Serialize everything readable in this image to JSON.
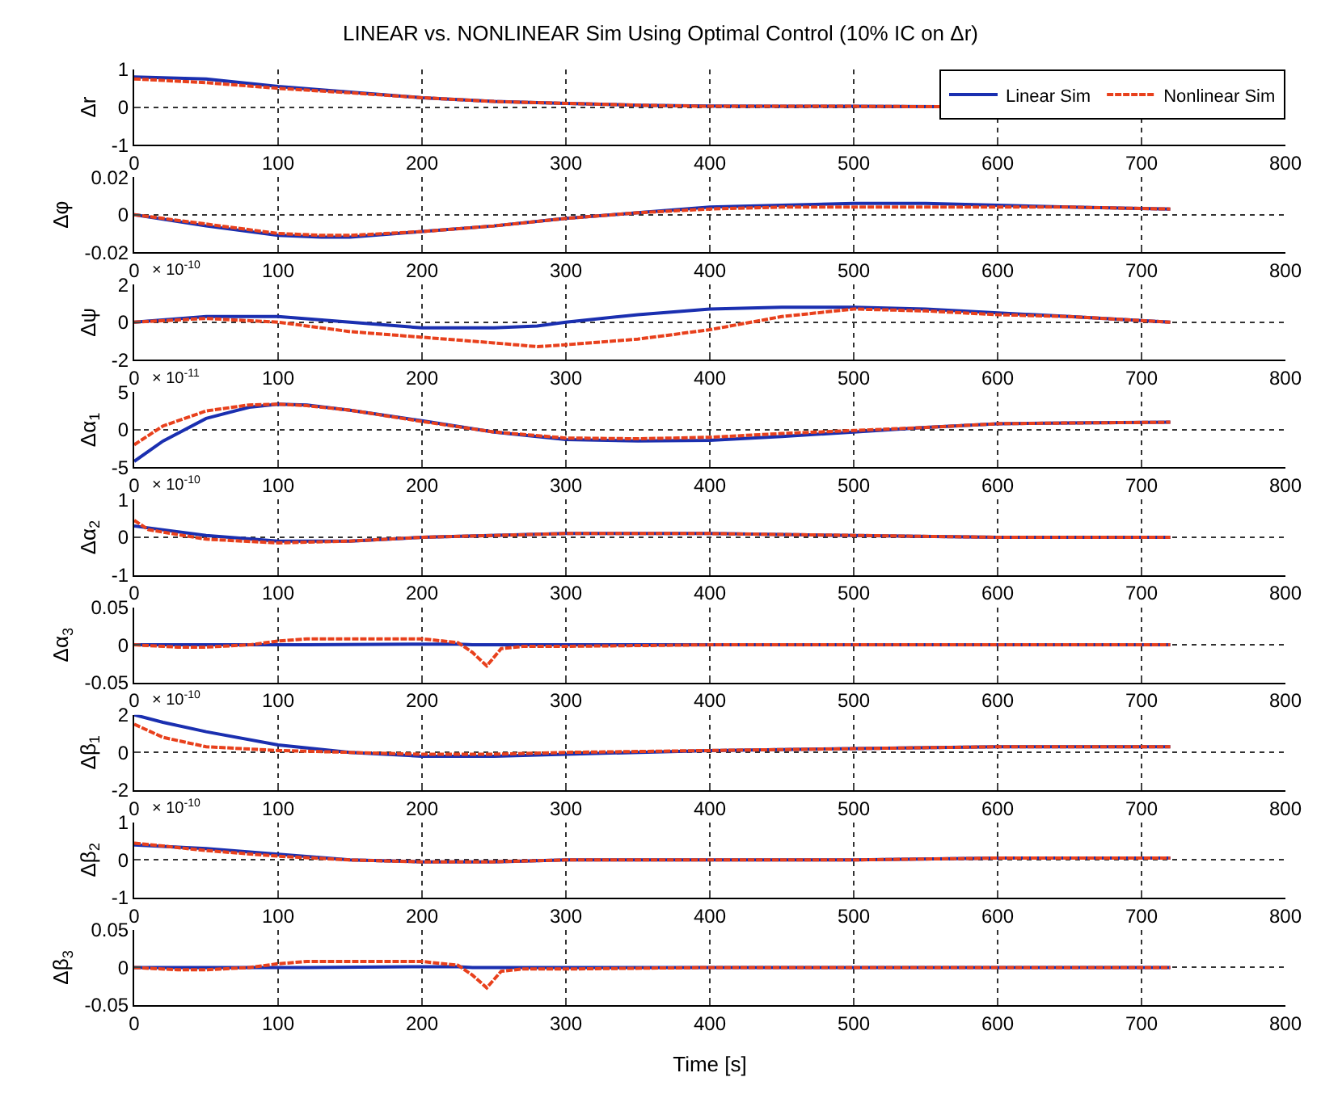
{
  "chart_data": [
    {
      "type": "line",
      "title": "LINEAR vs. NONLINEAR Sim Using Optimal Control (10% IC on Δr)",
      "ylabel": "Δr",
      "legend": "top right",
      "grid": true,
      "line_style": "solid",
      "xlim": [
        0,
        800
      ],
      "xticks": [
        0,
        100,
        200,
        300,
        400,
        500,
        600,
        700,
        800
      ],
      "ylim": [
        -1,
        1
      ],
      "yticks": [
        -1,
        0,
        1
      ],
      "x": [
        0,
        50,
        100,
        150,
        200,
        250,
        300,
        350,
        400,
        450,
        500,
        560
      ],
      "series": [
        {
          "name": "Linear Sim",
          "color": "#1a2fb0",
          "values": [
            0.8,
            0.75,
            0.55,
            0.4,
            0.25,
            0.15,
            0.1,
            0.05,
            0.03,
            0.02,
            0.02,
            0.01
          ]
        },
        {
          "name": "Nonlinear Sim",
          "color": "#e8401c",
          "line_style": "dashed",
          "values": [
            0.75,
            0.65,
            0.5,
            0.38,
            0.25,
            0.15,
            0.1,
            0.05,
            0.02,
            0.02,
            0.02,
            0.01
          ]
        }
      ]
    },
    {
      "type": "line",
      "ylabel": "Δφ",
      "grid": true,
      "xlim": [
        0,
        800
      ],
      "xticks": [
        0,
        100,
        200,
        300,
        400,
        500,
        600,
        700,
        800
      ],
      "ylim": [
        -0.02,
        0.02
      ],
      "yticks": [
        -0.02,
        0,
        0.02
      ],
      "x": [
        0,
        50,
        100,
        130,
        150,
        200,
        250,
        300,
        350,
        400,
        450,
        500,
        550,
        600,
        650,
        720
      ],
      "series": [
        {
          "color": "#1a2fb0",
          "values": [
            0,
            -0.006,
            -0.011,
            -0.012,
            -0.012,
            -0.009,
            -0.006,
            -0.002,
            0.001,
            0.004,
            0.005,
            0.006,
            0.006,
            0.005,
            0.004,
            0.003
          ]
        },
        {
          "color": "#e8401c",
          "line_style": "dashed",
          "values": [
            0,
            -0.005,
            -0.01,
            -0.011,
            -0.011,
            -0.009,
            -0.006,
            -0.002,
            0.001,
            0.003,
            0.004,
            0.004,
            0.004,
            0.004,
            0.004,
            0.003
          ]
        }
      ]
    },
    {
      "type": "line",
      "ylabel": "Δψ",
      "annotations": [
        "× 10$^{-10}$"
      ],
      "grid": true,
      "xlim": [
        0,
        800
      ],
      "xticks": [
        0,
        100,
        200,
        300,
        400,
        500,
        600,
        700,
        800
      ],
      "ylim": [
        -2,
        2
      ],
      "yticks": [
        -2,
        0,
        2
      ],
      "x": [
        0,
        50,
        100,
        150,
        200,
        250,
        280,
        300,
        350,
        400,
        450,
        500,
        550,
        600,
        650,
        720
      ],
      "series": [
        {
          "color": "#1a2fb0",
          "values": [
            0,
            0.3,
            0.3,
            0,
            -0.3,
            -0.3,
            -0.2,
            0,
            0.4,
            0.7,
            0.8,
            0.8,
            0.7,
            0.5,
            0.3,
            0
          ]
        },
        {
          "color": "#e8401c",
          "line_style": "dashed",
          "values": [
            0,
            0.2,
            0,
            -0.5,
            -0.8,
            -1.1,
            -1.3,
            -1.2,
            -0.9,
            -0.4,
            0.3,
            0.7,
            0.6,
            0.4,
            0.3,
            0
          ]
        }
      ]
    },
    {
      "type": "line",
      "ylabel": "Δα$_{1}$",
      "annotations": [
        "× 10$^{-11}$"
      ],
      "grid": true,
      "xlim": [
        0,
        800
      ],
      "xticks": [
        0,
        100,
        200,
        300,
        400,
        500,
        600,
        700,
        800
      ],
      "ylim": [
        -5,
        5
      ],
      "yticks": [
        -5,
        0,
        5
      ],
      "x": [
        0,
        20,
        50,
        80,
        100,
        120,
        150,
        200,
        250,
        300,
        350,
        400,
        450,
        500,
        550,
        600,
        650,
        720
      ],
      "series": [
        {
          "color": "#1a2fb0",
          "values": [
            -4.2,
            -1.5,
            1.5,
            3.0,
            3.4,
            3.3,
            2.6,
            1.2,
            -0.3,
            -1.3,
            -1.5,
            -1.4,
            -0.9,
            -0.3,
            0.3,
            0.8,
            0.9,
            1.0
          ]
        },
        {
          "color": "#e8401c",
          "line_style": "dashed",
          "values": [
            -2.0,
            0.5,
            2.5,
            3.3,
            3.4,
            3.2,
            2.6,
            1.1,
            -0.3,
            -1.1,
            -1.2,
            -1.0,
            -0.5,
            -0.1,
            0.3,
            0.8,
            0.9,
            1.0
          ]
        }
      ]
    },
    {
      "type": "line",
      "ylabel": "Δα$_{2}$",
      "annotations": [
        "× 10$^{-10}$"
      ],
      "grid": true,
      "xlim": [
        0,
        800
      ],
      "xticks": [
        0,
        100,
        200,
        300,
        400,
        500,
        600,
        700,
        800
      ],
      "ylim": [
        -1,
        1
      ],
      "yticks": [
        -1,
        0,
        1
      ],
      "x": [
        0,
        10,
        50,
        100,
        150,
        200,
        300,
        400,
        500,
        600,
        720
      ],
      "series": [
        {
          "color": "#1a2fb0",
          "values": [
            0.3,
            0.25,
            0.05,
            -0.1,
            -0.1,
            0,
            0.1,
            0.1,
            0.05,
            0,
            0
          ]
        },
        {
          "color": "#e8401c",
          "line_style": "dashed",
          "values": [
            0.45,
            0.2,
            -0.05,
            -0.15,
            -0.1,
            0,
            0.1,
            0.1,
            0.05,
            0,
            0
          ]
        }
      ]
    },
    {
      "type": "line",
      "ylabel": "Δα$_{3}$",
      "grid": true,
      "xlim": [
        0,
        800
      ],
      "xticks": [
        0,
        100,
        200,
        300,
        400,
        500,
        600,
        700,
        800
      ],
      "ylim": [
        -0.05,
        0.05
      ],
      "yticks": [
        -0.05,
        0,
        0.05
      ],
      "x": [
        0,
        30,
        50,
        80,
        100,
        120,
        200,
        225,
        235,
        245,
        255,
        270,
        300,
        400,
        500,
        600,
        720
      ],
      "series": [
        {
          "color": "#1a2fb0",
          "values": [
            0,
            0,
            0,
            0,
            0,
            0,
            0.001,
            0.001,
            0,
            0,
            0,
            0,
            0,
            0,
            0,
            0,
            0
          ]
        },
        {
          "color": "#e8401c",
          "line_style": "dashed",
          "values": [
            0,
            -0.003,
            -0.003,
            0,
            0.005,
            0.008,
            0.008,
            0.003,
            -0.01,
            -0.028,
            -0.005,
            -0.002,
            -0.002,
            0,
            0,
            0,
            0
          ]
        }
      ]
    },
    {
      "type": "line",
      "ylabel": "Δβ$_{1}$",
      "annotations": [
        "× 10$^{-10}$"
      ],
      "grid": true,
      "xlim": [
        0,
        800
      ],
      "xticks": [
        0,
        100,
        200,
        300,
        400,
        500,
        600,
        700,
        800
      ],
      "ylim": [
        -2,
        2
      ],
      "yticks": [
        -2,
        0,
        2
      ],
      "x": [
        0,
        20,
        50,
        100,
        150,
        200,
        250,
        300,
        400,
        500,
        600,
        720
      ],
      "series": [
        {
          "color": "#1a2fb0",
          "values": [
            2.0,
            1.6,
            1.1,
            0.4,
            0,
            -0.2,
            -0.2,
            -0.1,
            0.1,
            0.2,
            0.3,
            0.3
          ]
        },
        {
          "color": "#e8401c",
          "line_style": "dashed",
          "values": [
            1.5,
            0.8,
            0.3,
            0.1,
            0,
            -0.1,
            -0.1,
            0,
            0.1,
            0.2,
            0.3,
            0.3
          ]
        }
      ]
    },
    {
      "type": "line",
      "ylabel": "Δβ$_{2}$",
      "annotations": [
        "× 10$^{-10}$"
      ],
      "grid": true,
      "xlim": [
        0,
        800
      ],
      "xticks": [
        0,
        100,
        200,
        300,
        400,
        500,
        600,
        700,
        800
      ],
      "ylim": [
        -1,
        1
      ],
      "yticks": [
        -1,
        0,
        1
      ],
      "x": [
        0,
        50,
        100,
        150,
        200,
        250,
        300,
        400,
        500,
        600,
        720
      ],
      "series": [
        {
          "color": "#1a2fb0",
          "values": [
            0.4,
            0.3,
            0.15,
            0,
            -0.05,
            -0.05,
            0,
            0,
            0,
            0.05,
            0.05
          ]
        },
        {
          "color": "#e8401c",
          "line_style": "dashed",
          "values": [
            0.45,
            0.25,
            0.1,
            0,
            -0.05,
            -0.05,
            0,
            0,
            0,
            0.05,
            0.05
          ]
        }
      ]
    },
    {
      "type": "line",
      "ylabel": "Δβ$_{3}$",
      "xlabel": "Time [s]",
      "grid": true,
      "xlim": [
        0,
        800
      ],
      "xticks": [
        0,
        100,
        200,
        300,
        400,
        500,
        600,
        700,
        800
      ],
      "ylim": [
        -0.05,
        0.05
      ],
      "yticks": [
        -0.05,
        0,
        0.05
      ],
      "x": [
        0,
        30,
        50,
        80,
        100,
        120,
        200,
        225,
        235,
        245,
        255,
        270,
        300,
        400,
        500,
        600,
        720
      ],
      "series": [
        {
          "color": "#1a2fb0",
          "values": [
            0,
            0,
            0,
            0,
            0,
            0,
            0.001,
            0.001,
            0,
            0,
            0,
            0,
            0,
            0,
            0,
            0,
            0
          ]
        },
        {
          "color": "#e8401c",
          "line_style": "dashed",
          "values": [
            0,
            -0.003,
            -0.003,
            0,
            0.005,
            0.008,
            0.008,
            0.003,
            -0.01,
            -0.027,
            -0.005,
            -0.002,
            -0.002,
            0,
            0,
            0,
            0
          ]
        }
      ]
    }
  ]
}
